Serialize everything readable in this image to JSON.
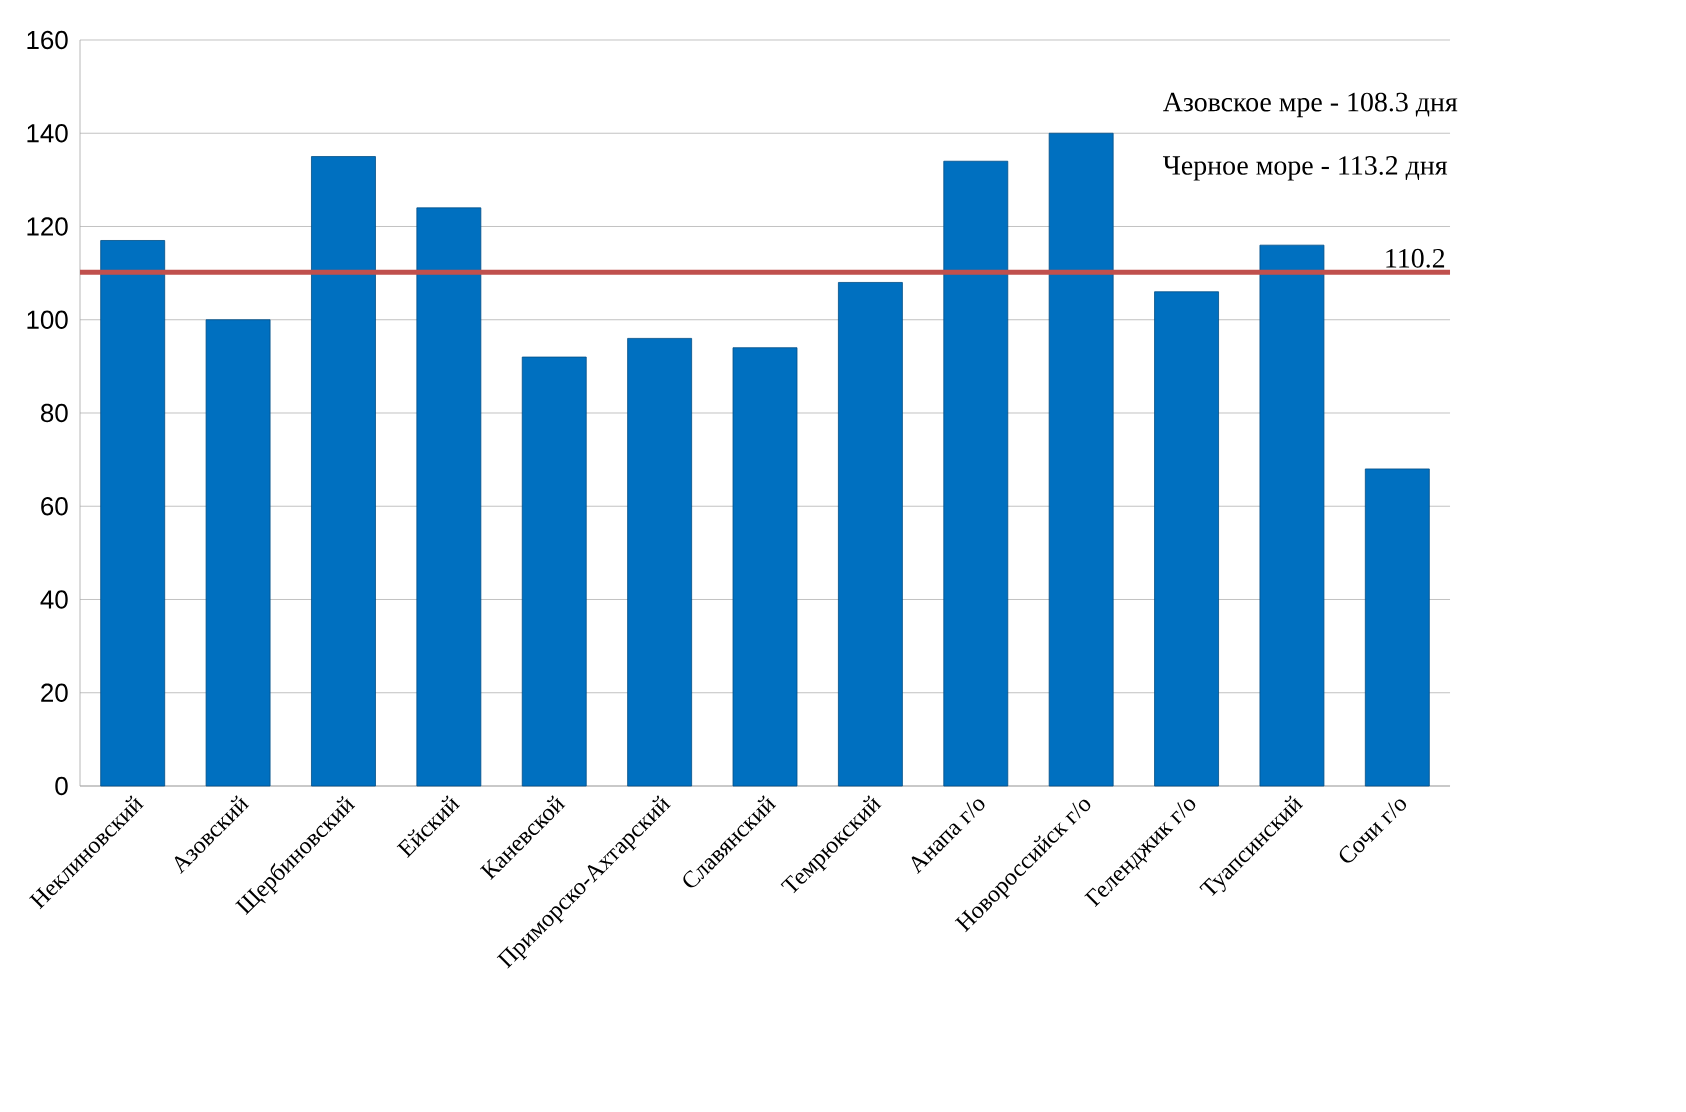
{
  "chart_data": {
    "type": "bar",
    "categories": [
      "Неклиновский",
      "Азовский",
      "Щербиновский",
      "Ейский",
      "Каневской",
      "Приморско-Ахтарский",
      "Славянский",
      "Темрюкский",
      "Анапа г/о",
      "Новороссийск г/о",
      "Геленджик г/о",
      "Туапсинский",
      "Сочи г/о"
    ],
    "values": [
      117,
      100,
      135,
      124,
      92,
      96,
      94,
      108,
      134,
      140,
      106,
      116,
      68
    ],
    "color": "#0070c0",
    "ylim": [
      0,
      160
    ],
    "yticks": [
      0,
      20,
      40,
      60,
      80,
      100,
      120,
      140,
      160
    ],
    "grid": "y",
    "ref_lines": [
      {
        "axis": "y",
        "value": 110.2,
        "label": "110.2",
        "color": "#c0504d"
      }
    ],
    "annotations": [
      "Азовское мре - 108.3 дня",
      "Черное море - 113.2 дня"
    ]
  }
}
